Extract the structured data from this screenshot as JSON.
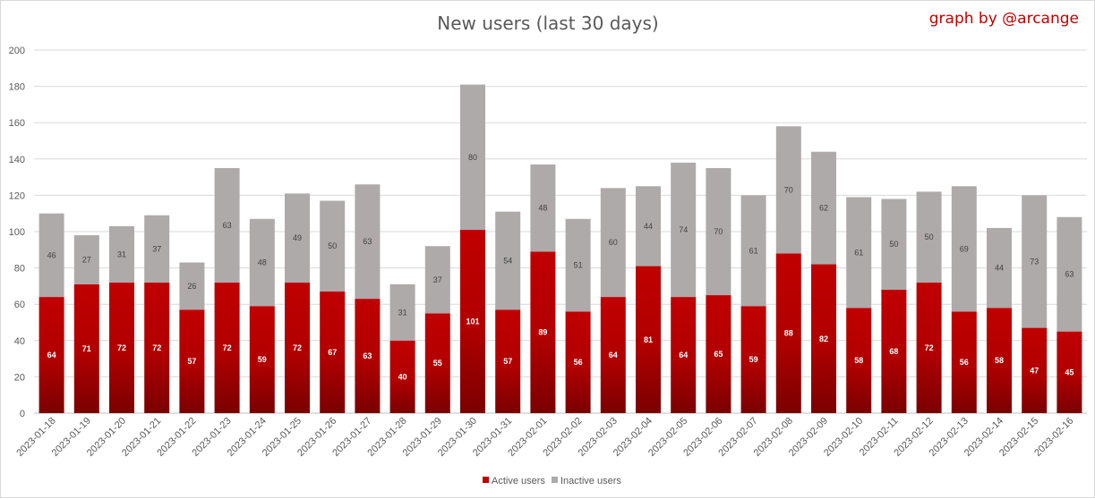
{
  "chart_data": {
    "type": "bar",
    "stacked": true,
    "title": "New users (last 30 days)",
    "credit": "graph by @arcange",
    "xlabel": "",
    "ylabel": "",
    "ylim": [
      0,
      200
    ],
    "yticks": [
      0,
      20,
      40,
      60,
      80,
      100,
      120,
      140,
      160,
      180,
      200
    ],
    "grid": true,
    "legend_position": "bottom",
    "categories": [
      "2023-01-18",
      "2023-01-19",
      "2023-01-20",
      "2023-01-21",
      "2023-01-22",
      "2023-01-23",
      "2023-01-24",
      "2023-01-25",
      "2023-01-26",
      "2023-01-27",
      "2023-01-28",
      "2023-01-29",
      "2023-01-30",
      "2023-01-31",
      "2023-02-01",
      "2023-02-02",
      "2023-02-03",
      "2023-02-04",
      "2023-02-05",
      "2023-02-06",
      "2023-02-07",
      "2023-02-08",
      "2023-02-09",
      "2023-02-10",
      "2023-02-11",
      "2023-02-12",
      "2023-02-13",
      "2023-02-14",
      "2023-02-15",
      "2023-02-16"
    ],
    "series": [
      {
        "name": "Active users",
        "color": "#c00000",
        "color_dark": "#7a0000",
        "values": [
          64,
          71,
          72,
          72,
          57,
          72,
          59,
          72,
          67,
          63,
          40,
          55,
          101,
          57,
          89,
          56,
          64,
          81,
          64,
          65,
          59,
          88,
          82,
          58,
          68,
          72,
          56,
          58,
          47,
          45
        ]
      },
      {
        "name": "Inactive users",
        "color": "#aeaaaa",
        "values": [
          46,
          27,
          31,
          37,
          26,
          63,
          48,
          49,
          50,
          63,
          31,
          37,
          80,
          54,
          48,
          51,
          60,
          44,
          74,
          70,
          61,
          70,
          62,
          61,
          50,
          50,
          69,
          44,
          73,
          63
        ]
      }
    ]
  }
}
